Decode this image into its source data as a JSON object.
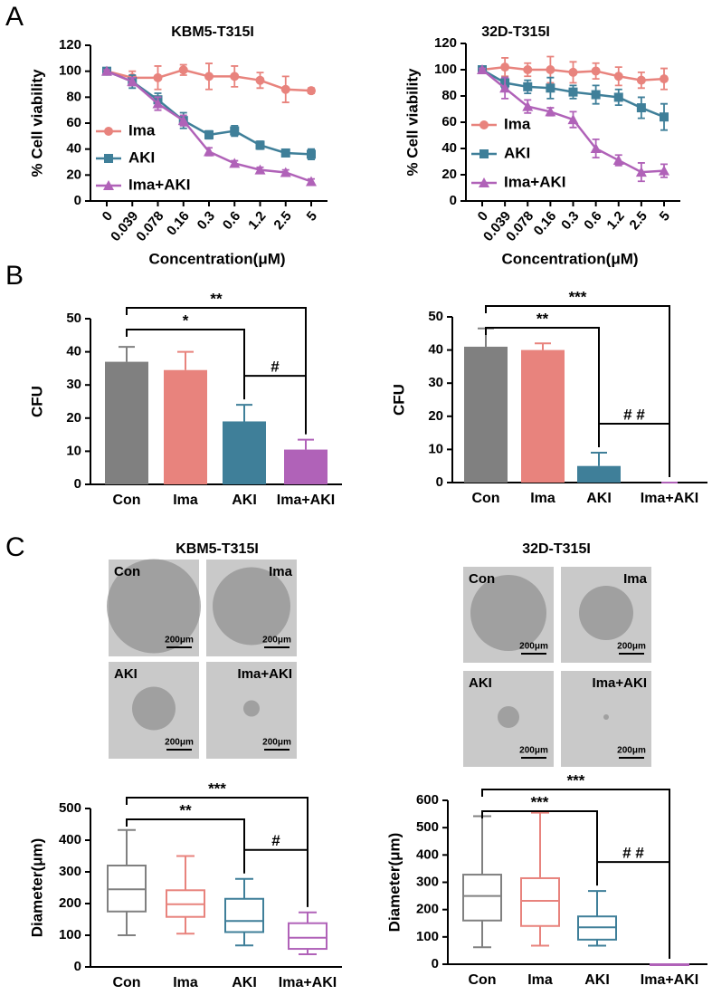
{
  "panel_labels": [
    "A",
    "B",
    "C"
  ],
  "images": [
    {
      "title": "KBM5-T315I",
      "panels": [
        {
          "label": "Con",
          "scale": "200μm"
        },
        {
          "label": "Ima",
          "scale": "200μm"
        },
        {
          "label": "AKI",
          "scale": "200μm"
        },
        {
          "label": "Ima+AKI",
          "scale": "200μm"
        }
      ]
    },
    {
      "title": "32D-T315I",
      "panels": [
        {
          "label": "Con",
          "scale": "200μm"
        },
        {
          "label": "Ima",
          "scale": "200μm"
        },
        {
          "label": "AKI",
          "scale": "200μm"
        },
        {
          "label": "Ima+AKI",
          "scale": "200μm"
        }
      ]
    }
  ],
  "chart_data": [
    {
      "type": "line",
      "title": "KBM5-T315I",
      "x_label": "Concentration(μM)",
      "y_label": "% Cell viability",
      "categories": [
        "0",
        "0.039",
        "0.078",
        "0.16",
        "0.3",
        "0.6",
        "1.2",
        "2.5",
        "5"
      ],
      "ylim": [
        0,
        120
      ],
      "yticks": [
        0,
        20,
        40,
        60,
        80,
        100,
        120
      ],
      "legend": "center-left",
      "series": [
        {
          "name": "Ima",
          "color": "#e8837d",
          "marker": "circle",
          "values": [
            100,
            95,
            95,
            101,
            96,
            96,
            93,
            86,
            85
          ],
          "errors": [
            0,
            5,
            9,
            4,
            10,
            8,
            6,
            10,
            2
          ]
        },
        {
          "name": "AKI",
          "color": "#3f7f99",
          "marker": "square",
          "values": [
            100,
            92,
            78,
            62,
            51,
            54,
            43,
            37,
            36
          ],
          "errors": [
            1,
            5,
            5,
            6,
            3,
            4,
            3,
            2,
            4
          ]
        },
        {
          "name": "Ima+AKI",
          "color": "#b062b8",
          "marker": "triangle",
          "values": [
            100,
            92,
            75,
            62,
            38,
            29,
            24,
            22,
            15
          ],
          "errors": [
            1,
            3,
            5,
            4,
            3,
            2,
            2,
            2,
            2
          ]
        }
      ]
    },
    {
      "type": "line",
      "title": "32D-T315I",
      "x_label": "Concentration(μM)",
      "y_label": "% Cell viability",
      "categories": [
        "0",
        "0.039",
        "0.078",
        "0.16",
        "0.3",
        "0.6",
        "1.2",
        "2.5",
        "5"
      ],
      "ylim": [
        0,
        120
      ],
      "yticks": [
        0,
        20,
        40,
        60,
        80,
        100,
        120
      ],
      "legend": "center-left",
      "series": [
        {
          "name": "Ima",
          "color": "#e8837d",
          "marker": "circle",
          "values": [
            100,
            102,
            100,
            100,
            98,
            99,
            95,
            92,
            93
          ],
          "errors": [
            0,
            7,
            5,
            10,
            8,
            6,
            7,
            6,
            8
          ]
        },
        {
          "name": "AKI",
          "color": "#3f7f99",
          "marker": "square",
          "values": [
            100,
            90,
            87,
            86,
            83,
            81,
            79,
            71,
            64
          ],
          "errors": [
            1,
            4,
            5,
            8,
            5,
            7,
            6,
            8,
            10
          ]
        },
        {
          "name": "Ima+AKI",
          "color": "#b062b8",
          "marker": "triangle",
          "values": [
            100,
            86,
            72,
            68,
            62,
            40,
            31,
            22,
            23
          ],
          "errors": [
            1,
            8,
            5,
            3,
            6,
            7,
            4,
            7,
            5
          ]
        }
      ]
    },
    {
      "type": "bar",
      "y_label": "CFU",
      "categories": [
        "Con",
        "Ima",
        "AKI",
        "Ima+AKI"
      ],
      "values": [
        37,
        34.5,
        19,
        10.5
      ],
      "errors": [
        4.5,
        5.5,
        5,
        3
      ],
      "colors": [
        "#808080",
        "#e8837d",
        "#3f7f99",
        "#b062b8"
      ],
      "ylim": [
        0,
        50
      ],
      "yticks": [
        0,
        10,
        20,
        30,
        40,
        50
      ],
      "significance": [
        {
          "from": "Con",
          "to": "AKI",
          "label": "*"
        },
        {
          "from": "Con",
          "to": "Ima+AKI",
          "label": "**"
        },
        {
          "from": "AKI",
          "to": "Ima+AKI",
          "label": "#"
        }
      ]
    },
    {
      "type": "bar",
      "y_label": "CFU",
      "categories": [
        "Con",
        "Ima",
        "AKI",
        "Ima+AKI"
      ],
      "values": [
        41,
        40,
        5,
        0
      ],
      "errors": [
        5.5,
        2,
        4,
        0
      ],
      "colors": [
        "#808080",
        "#e8837d",
        "#3f7f99",
        "#b062b8"
      ],
      "ylim": [
        0,
        50
      ],
      "yticks": [
        0,
        10,
        20,
        30,
        40,
        50
      ],
      "significance": [
        {
          "from": "Con",
          "to": "AKI",
          "label": "**"
        },
        {
          "from": "Con",
          "to": "Ima+AKI",
          "label": "***"
        },
        {
          "from": "AKI",
          "to": "Ima+AKI",
          "label": "# #"
        }
      ]
    },
    {
      "type": "box",
      "y_label": "Diameter(μm)",
      "categories": [
        "Con",
        "Ima",
        "AKI",
        "Ima+AKI"
      ],
      "colors": [
        "#808080",
        "#e8837d",
        "#3f7f99",
        "#b062b8"
      ],
      "boxes": [
        {
          "min": 100,
          "q1": 175,
          "median": 245,
          "q3": 320,
          "max": 432
        },
        {
          "min": 105,
          "q1": 158,
          "median": 198,
          "q3": 242,
          "max": 350
        },
        {
          "min": 68,
          "q1": 110,
          "median": 145,
          "q3": 215,
          "max": 278
        },
        {
          "min": 40,
          "q1": 57,
          "median": 92,
          "q3": 138,
          "max": 172
        }
      ],
      "ylim": [
        0,
        500
      ],
      "yticks": [
        0,
        100,
        200,
        300,
        400,
        500
      ],
      "significance": [
        {
          "from": "Con",
          "to": "AKI",
          "label": "**"
        },
        {
          "from": "Con",
          "to": "Ima+AKI",
          "label": "***"
        },
        {
          "from": "AKI",
          "to": "Ima+AKI",
          "label": "#"
        }
      ]
    },
    {
      "type": "box",
      "y_label": "Diameter(μm)",
      "categories": [
        "Con",
        "Ima",
        "AKI",
        "Ima+AKI"
      ],
      "colors": [
        "#808080",
        "#e8837d",
        "#3f7f99",
        "#b062b8"
      ],
      "boxes": [
        {
          "min": 62,
          "q1": 160,
          "median": 250,
          "q3": 328,
          "max": 542
        },
        {
          "min": 68,
          "q1": 140,
          "median": 232,
          "q3": 315,
          "max": 555
        },
        {
          "min": 68,
          "q1": 90,
          "median": 135,
          "q3": 175,
          "max": 268
        },
        {
          "min": 0,
          "q1": 0,
          "median": 0,
          "q3": 0,
          "max": 0
        }
      ],
      "ylim": [
        0,
        600
      ],
      "yticks": [
        0,
        100,
        200,
        300,
        400,
        500,
        600
      ],
      "significance": [
        {
          "from": "Con",
          "to": "AKI",
          "label": "***"
        },
        {
          "from": "Con",
          "to": "Ima+AKI",
          "label": "***"
        },
        {
          "from": "AKI",
          "to": "Ima+AKI",
          "label": "# #"
        }
      ]
    }
  ]
}
